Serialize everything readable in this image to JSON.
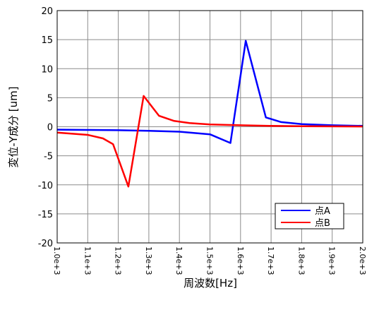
{
  "chart_data": {
    "type": "line",
    "xlabel": "周波数[Hz]",
    "ylabel": "変位-Y成分 [um]",
    "xlim": [
      1000,
      2000
    ],
    "ylim": [
      -20,
      20
    ],
    "x_ticks": [
      1000,
      1100,
      1200,
      1300,
      1400,
      1500,
      1600,
      1700,
      1800,
      1900,
      2000
    ],
    "x_tick_labels": [
      "1.0e+3",
      "1.1e+3",
      "1.2e+3",
      "1.3e+3",
      "1.4e+3",
      "1.5e+3",
      "1.6e+3",
      "1.7e+3",
      "1.8e+3",
      "1.9e+3",
      "2.0e+3"
    ],
    "y_ticks": [
      -20,
      -15,
      -10,
      -5,
      0,
      5,
      10,
      15,
      20
    ],
    "y_tick_labels": [
      "-20",
      "-15",
      "-10",
      "-5",
      "0",
      "5",
      "10",
      "15",
      "20"
    ],
    "grid": true,
    "legend_position": "bottom-right",
    "series": [
      {
        "name": "点A",
        "color": "#0000ff",
        "points": [
          [
            1000,
            -0.5
          ],
          [
            1100,
            -0.55
          ],
          [
            1200,
            -0.6
          ],
          [
            1300,
            -0.7
          ],
          [
            1400,
            -0.85
          ],
          [
            1500,
            -1.3
          ],
          [
            1567,
            -2.8
          ],
          [
            1617,
            14.8
          ],
          [
            1683,
            1.6
          ],
          [
            1733,
            0.8
          ],
          [
            1800,
            0.45
          ],
          [
            1900,
            0.25
          ],
          [
            2000,
            0.15
          ]
        ]
      },
      {
        "name": "点B",
        "color": "#ff0000",
        "points": [
          [
            1000,
            -1.0
          ],
          [
            1050,
            -1.2
          ],
          [
            1100,
            -1.4
          ],
          [
            1150,
            -2.0
          ],
          [
            1183,
            -3.0
          ],
          [
            1233,
            -10.3
          ],
          [
            1283,
            5.3
          ],
          [
            1333,
            1.9
          ],
          [
            1383,
            1.0
          ],
          [
            1433,
            0.65
          ],
          [
            1500,
            0.4
          ],
          [
            1600,
            0.25
          ],
          [
            1700,
            0.15
          ],
          [
            1800,
            0.1
          ],
          [
            2000,
            0.05
          ]
        ]
      }
    ]
  }
}
